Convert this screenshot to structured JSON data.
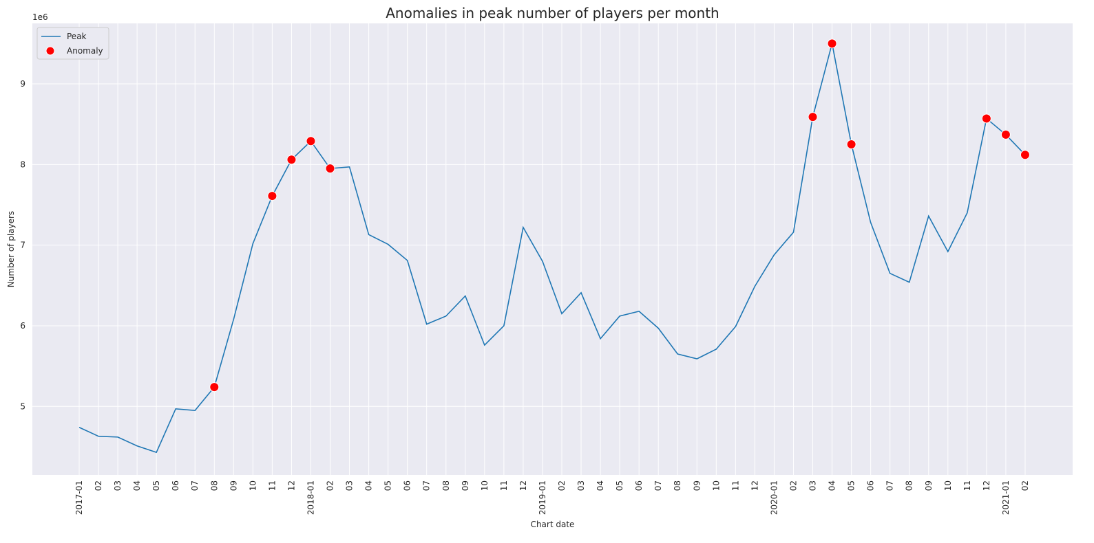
{
  "chart_data": {
    "type": "line",
    "title": "Anomalies in peak number of players per month",
    "xlabel": "Chart date",
    "ylabel": "Number of players",
    "y_multiplier_label": "1e6",
    "x_tick_labels": [
      "2017-01",
      "02",
      "03",
      "04",
      "05",
      "06",
      "07",
      "08",
      "09",
      "10",
      "11",
      "12",
      "2018-01",
      "02",
      "03",
      "04",
      "05",
      "06",
      "07",
      "08",
      "09",
      "10",
      "11",
      "12",
      "2019-01",
      "02",
      "03",
      "04",
      "05",
      "06",
      "07",
      "08",
      "09",
      "10",
      "11",
      "12",
      "2020-01",
      "02",
      "03",
      "04",
      "05",
      "06",
      "07",
      "08",
      "09",
      "10",
      "11",
      "12",
      "2021-01",
      "02"
    ],
    "y_ticks": [
      5,
      6,
      7,
      8,
      9
    ],
    "ylim": [
      4.15,
      9.75
    ],
    "grid": true,
    "legend_position": "upper-left",
    "colors": {
      "line": "#1f77b4",
      "anomaly": "#ff0000",
      "background": "#eaeaf2",
      "grid": "#ffffff"
    },
    "series": [
      {
        "name": "Peak",
        "values": [
          4.74,
          4.63,
          4.62,
          4.51,
          4.43,
          4.97,
          4.95,
          5.24,
          6.08,
          7.02,
          7.61,
          8.06,
          8.29,
          7.95,
          7.97,
          7.13,
          7.01,
          6.81,
          6.02,
          6.12,
          6.37,
          5.76,
          6.0,
          7.22,
          6.8,
          6.15,
          6.41,
          5.84,
          6.12,
          6.18,
          5.97,
          5.65,
          5.59,
          5.71,
          5.99,
          6.49,
          6.88,
          7.16,
          8.59,
          9.5,
          8.25,
          7.28,
          6.65,
          6.54,
          7.36,
          6.92,
          7.4,
          8.57,
          8.37,
          8.12
        ]
      },
      {
        "name": "Anomaly",
        "points": [
          {
            "x": "2017-08",
            "y": 5.24
          },
          {
            "x": "2017-11",
            "y": 7.61
          },
          {
            "x": "2017-12",
            "y": 8.06
          },
          {
            "x": "2018-01",
            "y": 8.29
          },
          {
            "x": "2018-02",
            "y": 7.95
          },
          {
            "x": "2020-03",
            "y": 8.59
          },
          {
            "x": "2020-04",
            "y": 9.5
          },
          {
            "x": "2020-05",
            "y": 8.25
          },
          {
            "x": "2020-12",
            "y": 8.57
          },
          {
            "x": "2021-01",
            "y": 8.37
          },
          {
            "x": "2021-02",
            "y": 8.12
          }
        ]
      }
    ]
  }
}
